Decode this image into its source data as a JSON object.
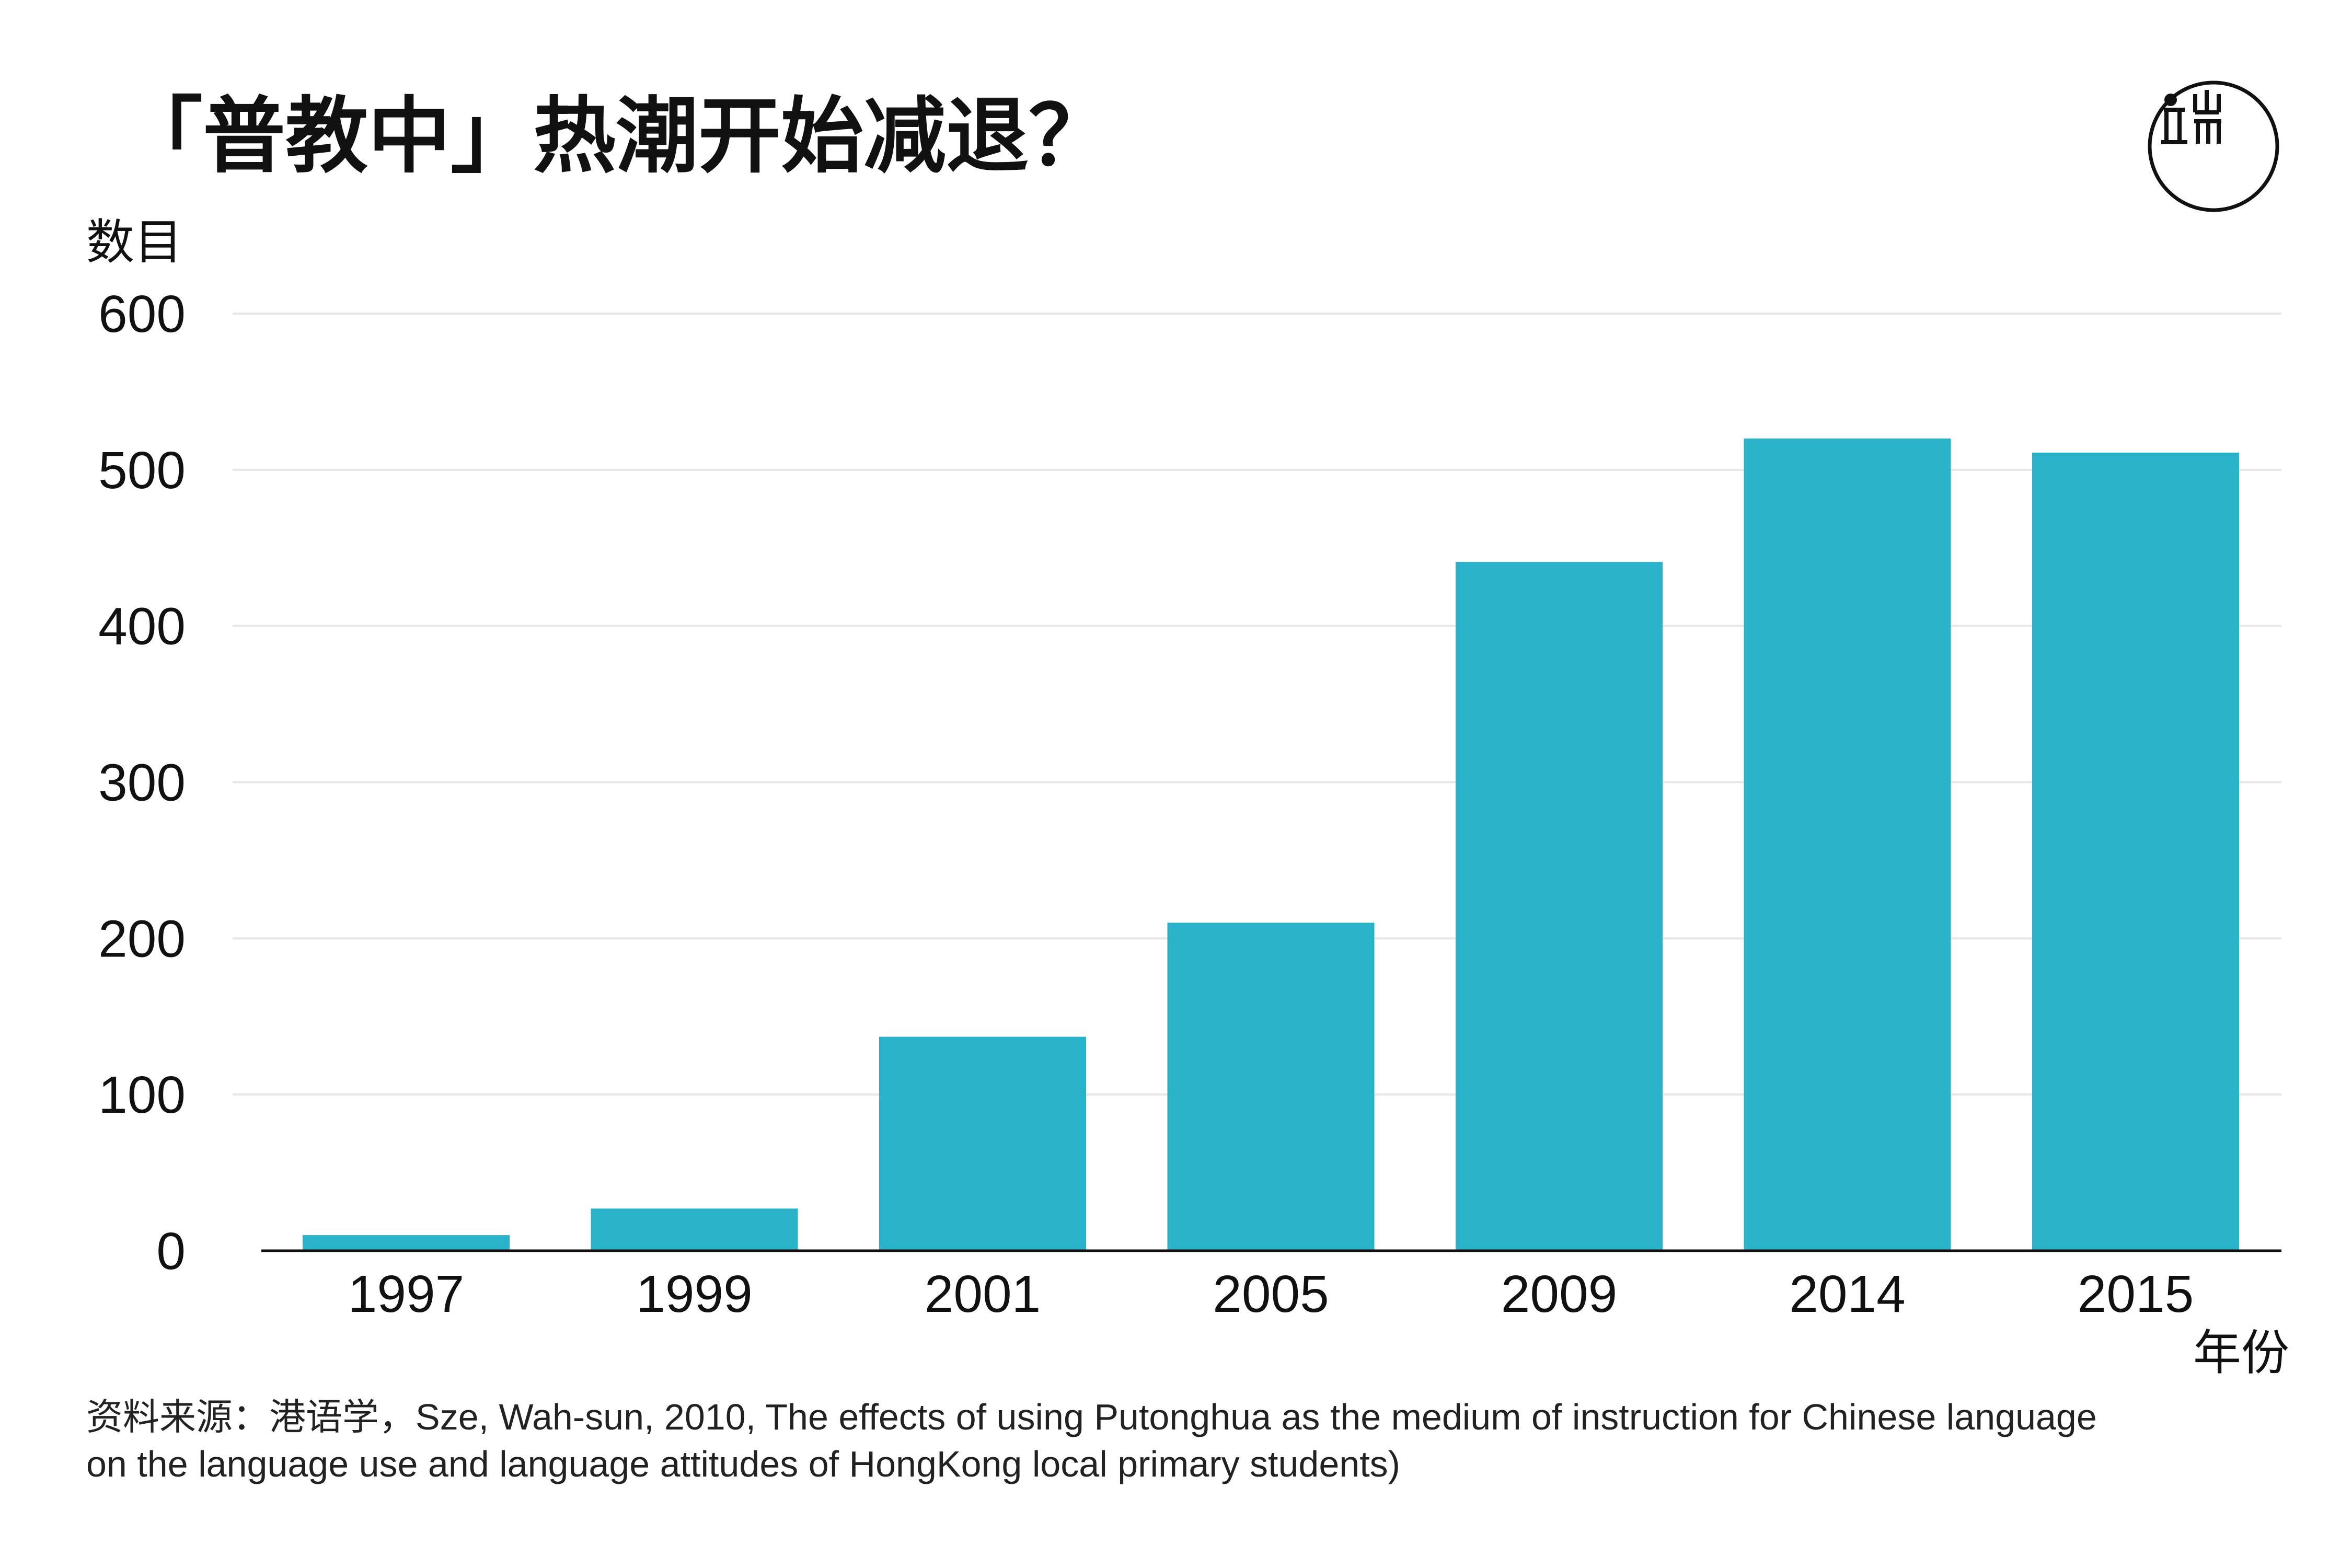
{
  "chart_data": {
    "type": "bar",
    "title": "「普教中」热潮开始减退？",
    "ylabel": "数目",
    "xlabel": "年份",
    "categories": [
      "1997",
      "1999",
      "2001",
      "2005",
      "2009",
      "2014",
      "2015"
    ],
    "values": [
      10,
      27,
      137,
      210,
      441,
      520,
      511
    ],
    "ylim": [
      0,
      600
    ],
    "yticks": [
      0,
      100,
      200,
      300,
      400,
      500,
      600
    ],
    "grid": true,
    "bar_color": "#29b2c9"
  },
  "source": {
    "line1": "资料来源：港语学，Sze, Wah-sun, 2010, The effects of using Putonghua as the medium of instruction for Chinese language",
    "line2": "on the language use and language attitudes of HongKong local primary students)"
  },
  "logo": {
    "name": "initium-logo-icon"
  }
}
